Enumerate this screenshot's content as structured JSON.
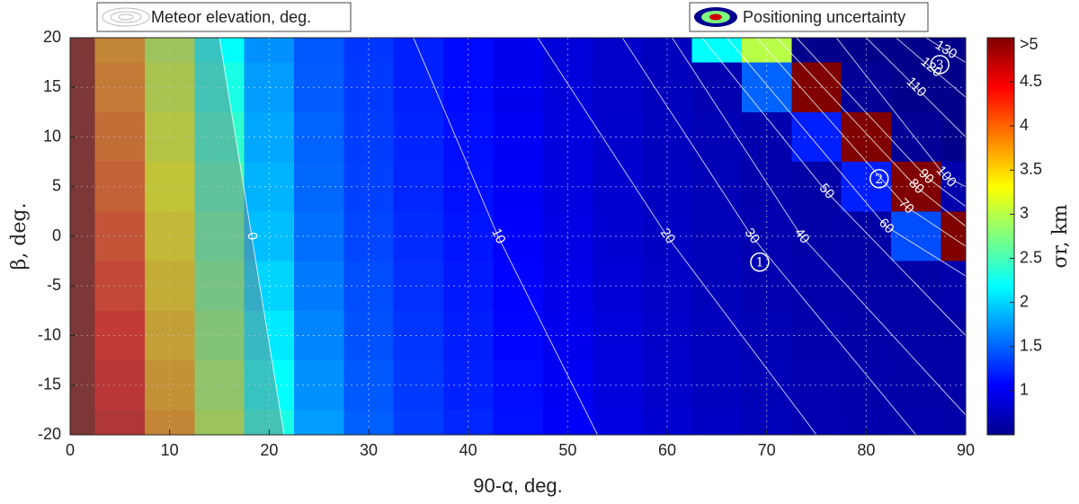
{
  "chart_data": {
    "type": "contour",
    "xlabel": "90-α, deg.",
    "ylabel": "β, deg.",
    "colorbar_label": "σr, km",
    "legend": [
      {
        "label": "Meteor elevation, deg."
      },
      {
        "label": "Positioning uncertainty"
      }
    ],
    "xlim": [
      0,
      90
    ],
    "xticks": [
      0,
      10,
      20,
      30,
      40,
      50,
      60,
      70,
      80,
      90
    ],
    "ylim": [
      -20,
      20
    ],
    "yticks": [
      -20,
      -15,
      -10,
      -5,
      0,
      5,
      10,
      15,
      20
    ],
    "clim": [
      0.5,
      5
    ],
    "cticks": [
      1,
      1.5,
      2,
      2.5,
      3,
      3.5,
      4,
      4.5,
      {
        "value": 5,
        "label": ">5"
      }
    ],
    "colormap": "jet",
    "grid": true,
    "x": [
      0,
      5,
      10,
      15,
      20,
      25,
      30,
      35,
      40,
      45,
      50,
      55,
      60,
      65,
      70,
      75,
      80,
      85,
      90
    ],
    "y": [
      20,
      15,
      10,
      5,
      0,
      -5,
      -10,
      -15,
      -20
    ],
    "z": [
      [
        5.2,
        3.8,
        3.0,
        2.2,
        1.7,
        1.45,
        1.3,
        1.2,
        1.1,
        1.0,
        0.9,
        0.82,
        0.77,
        2.2,
        3.0,
        0.55,
        0.55,
        0.55,
        0.55
      ],
      [
        5.2,
        3.9,
        3.1,
        2.3,
        1.75,
        1.47,
        1.32,
        1.2,
        1.1,
        1.0,
        0.9,
        0.83,
        0.77,
        0.72,
        1.5,
        5.5,
        0.6,
        0.55,
        0.55
      ],
      [
        5.2,
        4.0,
        3.2,
        2.4,
        1.8,
        1.5,
        1.33,
        1.22,
        1.12,
        1.02,
        0.92,
        0.84,
        0.78,
        0.73,
        0.7,
        1.2,
        6,
        0.6,
        0.55
      ],
      [
        5.2,
        4.1,
        3.3,
        2.5,
        1.85,
        1.52,
        1.35,
        1.23,
        1.13,
        1.03,
        0.93,
        0.85,
        0.79,
        0.74,
        0.7,
        0.67,
        1.2,
        6,
        0.7
      ],
      [
        5.2,
        4.2,
        3.4,
        2.6,
        1.9,
        1.55,
        1.37,
        1.25,
        1.15,
        1.05,
        0.95,
        0.86,
        0.8,
        0.75,
        0.71,
        0.68,
        0.66,
        1.4,
        6
      ],
      [
        5.2,
        4.3,
        3.5,
        2.7,
        2.0,
        1.6,
        1.4,
        1.27,
        1.17,
        1.07,
        0.97,
        0.88,
        0.81,
        0.76,
        0.72,
        0.69,
        0.67,
        0.66,
        0.7
      ],
      [
        5.2,
        4.4,
        3.6,
        2.8,
        2.1,
        1.65,
        1.42,
        1.29,
        1.19,
        1.09,
        0.99,
        0.9,
        0.82,
        0.77,
        0.73,
        0.7,
        0.68,
        0.67,
        0.66
      ],
      [
        5.2,
        4.5,
        3.7,
        2.9,
        2.2,
        1.7,
        1.45,
        1.31,
        1.21,
        1.11,
        1.01,
        0.92,
        0.84,
        0.78,
        0.74,
        0.71,
        0.69,
        0.68,
        0.67
      ],
      [
        5.2,
        4.6,
        3.8,
        3.0,
        2.3,
        1.75,
        1.48,
        1.33,
        1.23,
        1.13,
        1.03,
        0.94,
        0.86,
        0.8,
        0.75,
        0.72,
        0.7,
        0.69,
        0.68
      ]
    ],
    "contours": [
      {
        "level": 0,
        "points": [
          [
            15,
            20
          ],
          [
            21.5,
            -20
          ]
        ]
      },
      {
        "level": 10,
        "points": [
          [
            34.5,
            20
          ],
          [
            43,
            0
          ],
          [
            53,
            -20
          ]
        ]
      },
      {
        "level": 20,
        "points": [
          [
            47,
            20
          ],
          [
            60,
            0
          ],
          [
            75,
            -20
          ]
        ]
      },
      {
        "level": 30,
        "points": [
          [
            55.5,
            20
          ],
          [
            68.5,
            0
          ],
          [
            85,
            -20
          ]
        ]
      },
      {
        "level": 40,
        "points": [
          [
            60.5,
            20
          ],
          [
            73.5,
            0
          ],
          [
            90,
            -18
          ]
        ]
      },
      {
        "level": 50,
        "points": [
          [
            63.5,
            20
          ],
          [
            76,
            4.5
          ],
          [
            90,
            -10
          ]
        ]
      },
      {
        "level": 60,
        "points": [
          [
            66,
            20
          ],
          [
            82,
            1
          ],
          [
            90,
            -4
          ]
        ]
      },
      {
        "level": 70,
        "points": [
          [
            69,
            20
          ],
          [
            84,
            3
          ],
          [
            90,
            -1
          ]
        ]
      },
      {
        "level": 80,
        "points": [
          [
            71,
            20
          ],
          [
            85,
            5
          ],
          [
            90,
            1
          ]
        ]
      },
      {
        "level": 90,
        "points": [
          [
            73,
            20
          ],
          [
            86,
            6
          ],
          [
            90,
            3
          ]
        ]
      },
      {
        "level": 100,
        "points": [
          [
            77,
            20
          ],
          [
            88,
            6
          ],
          [
            90,
            5
          ]
        ]
      },
      {
        "level": 110,
        "points": [
          [
            80,
            20
          ],
          [
            90,
            10
          ]
        ]
      },
      {
        "level": 120,
        "points": [
          [
            83,
            20
          ],
          [
            90,
            14
          ]
        ]
      },
      {
        "level": 130,
        "points": [
          [
            86,
            20
          ],
          [
            90,
            17.5
          ]
        ]
      }
    ],
    "markers": [
      {
        "label": "1",
        "x": 69.3,
        "y": -2.6
      },
      {
        "label": "2",
        "x": 81.3,
        "y": 5.8
      },
      {
        "label": "3",
        "x": 87.4,
        "y": 17.3
      }
    ]
  }
}
